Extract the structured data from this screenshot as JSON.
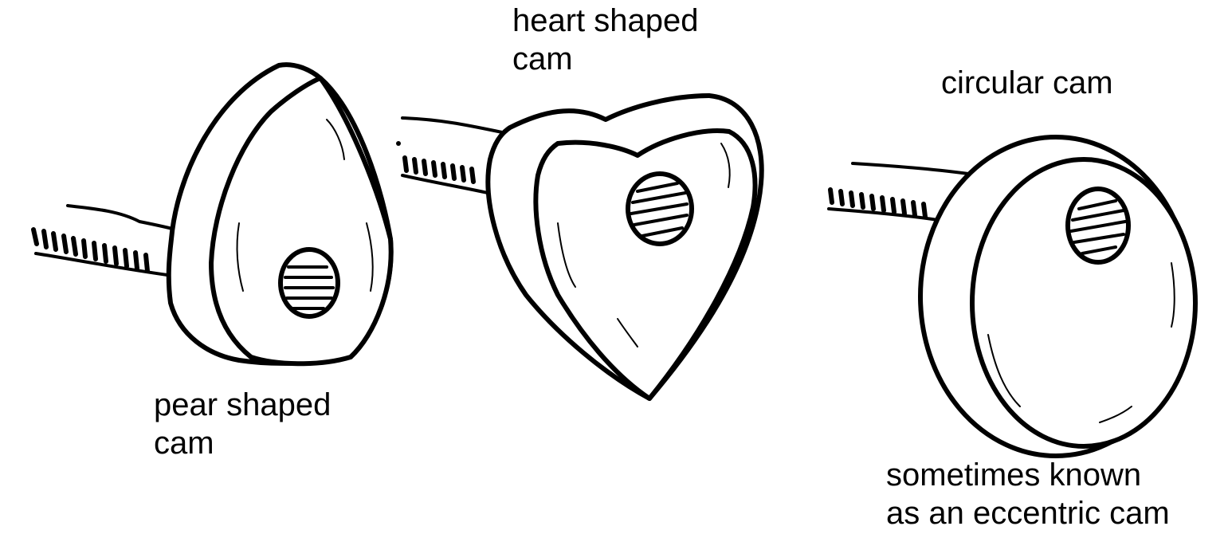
{
  "labels": {
    "heart": {
      "line1": "heart shaped",
      "line2": "cam"
    },
    "pear": {
      "line1": "pear shaped",
      "line2": "cam"
    },
    "circular": {
      "line1": "circular cam"
    },
    "note": {
      "line1": "sometimes known",
      "line2": "as an eccentric cam"
    }
  },
  "colors": {
    "ink": "#000000",
    "paper": "#ffffff"
  }
}
